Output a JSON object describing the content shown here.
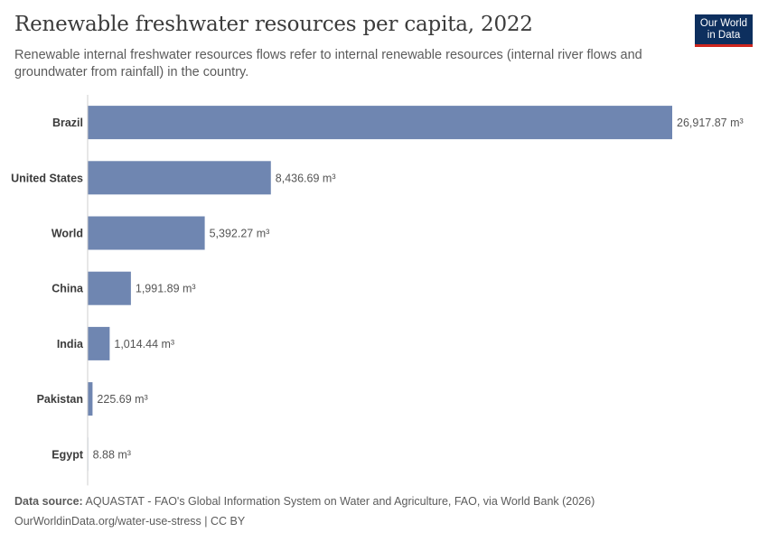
{
  "header": {
    "title": "Renewable freshwater resources per capita, 2022",
    "subtitle": "Renewable internal freshwater resources flows refer to internal renewable resources (internal river flows and groundwater from rainfall) in the country."
  },
  "logo": {
    "line1": "Our World",
    "line2": "in Data"
  },
  "colors": {
    "bar": "#6f86b1",
    "axis": "#cfcfcf",
    "label": "#3b3b3b",
    "value": "#555555"
  },
  "chart_data": {
    "type": "bar",
    "orientation": "horizontal",
    "categories": [
      "Brazil",
      "United States",
      "World",
      "China",
      "India",
      "Pakistan",
      "Egypt"
    ],
    "values": [
      26917.87,
      8436.69,
      5392.27,
      1991.89,
      1014.44,
      225.69,
      8.88
    ],
    "value_labels": [
      "26,917.87 m³",
      "8,436.69 m³",
      "5,392.27 m³",
      "1,991.89 m³",
      "1,014.44 m³",
      "225.69 m³",
      "8.88 m³"
    ],
    "unit": "m³",
    "xlim": [
      0,
      26917.87
    ]
  },
  "footer": {
    "source_label": "Data source:",
    "source_text": "AQUASTAT - FAO's Global Information System on Water and Agriculture, FAO, via World Bank (2026)",
    "url_text": "OurWorldinData.org/water-use-stress | CC BY"
  }
}
